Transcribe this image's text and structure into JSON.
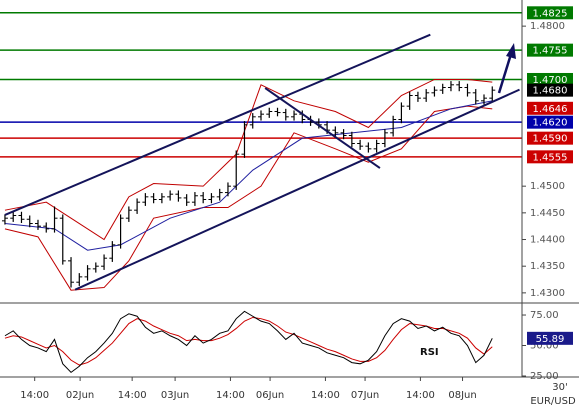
{
  "chart_data": [
    {
      "type": "ohlc",
      "symbol": "EUR/USD",
      "timeframe": "30'",
      "xlim": [
        -0.6,
        62.6
      ],
      "ylim": [
        1.4281,
        1.4849
      ],
      "yticks": [
        {
          "value": 1.43,
          "label": "1.4300"
        },
        {
          "value": 1.435,
          "label": "1.4350"
        },
        {
          "value": 1.44,
          "label": "1.4400"
        },
        {
          "value": 1.445,
          "label": "1.4450"
        },
        {
          "value": 1.45,
          "label": "1.4500"
        },
        {
          "value": 1.48,
          "label": "1.4800"
        }
      ],
      "color": "#000000",
      "open": [
        1.4435,
        1.444,
        1.4445,
        1.4438,
        1.443,
        1.4425,
        1.442,
        1.444,
        1.436,
        1.432,
        1.433,
        1.4345,
        1.435,
        1.4365,
        1.439,
        1.444,
        1.4455,
        1.447,
        1.448,
        1.4475,
        1.448,
        1.4485,
        1.4478,
        1.447,
        1.4482,
        1.4475,
        1.448,
        1.4488,
        1.45,
        1.456,
        1.4615,
        1.463,
        1.4635,
        1.464,
        1.4638,
        1.463,
        1.4635,
        1.4625,
        1.462,
        1.4615,
        1.4605,
        1.46,
        1.4595,
        1.458,
        1.4575,
        1.457,
        1.458,
        1.46,
        1.4625,
        1.465,
        1.467,
        1.4665,
        1.4675,
        1.468,
        1.4685,
        1.469,
        1.4685,
        1.4675,
        1.466,
        1.4665
      ],
      "high": [
        1.4447,
        1.4452,
        1.4452,
        1.4445,
        1.4437,
        1.4432,
        1.4462,
        1.4447,
        1.4367,
        1.4337,
        1.4352,
        1.4357,
        1.4372,
        1.4397,
        1.4447,
        1.4462,
        1.4477,
        1.4487,
        1.4487,
        1.4487,
        1.4492,
        1.4492,
        1.4485,
        1.4489,
        1.4489,
        1.4487,
        1.4495,
        1.4507,
        1.4567,
        1.4622,
        1.4637,
        1.4642,
        1.4647,
        1.4647,
        1.4645,
        1.4642,
        1.4642,
        1.4632,
        1.4627,
        1.4622,
        1.4612,
        1.4607,
        1.4602,
        1.4587,
        1.4582,
        1.4587,
        1.4607,
        1.4632,
        1.4657,
        1.4677,
        1.4677,
        1.4682,
        1.4687,
        1.4692,
        1.4697,
        1.4697,
        1.4692,
        1.4682,
        1.4672,
        1.4687
      ],
      "low": [
        1.4428,
        1.4433,
        1.4431,
        1.4423,
        1.4418,
        1.4413,
        1.4413,
        1.4353,
        1.431,
        1.4313,
        1.4323,
        1.4338,
        1.4343,
        1.4358,
        1.4383,
        1.4433,
        1.4448,
        1.4463,
        1.4468,
        1.4468,
        1.4473,
        1.4471,
        1.4463,
        1.4463,
        1.4468,
        1.4468,
        1.4473,
        1.4481,
        1.4493,
        1.4553,
        1.4608,
        1.4623,
        1.4628,
        1.4631,
        1.4623,
        1.4623,
        1.4618,
        1.4613,
        1.4608,
        1.4598,
        1.4593,
        1.4588,
        1.4573,
        1.4568,
        1.4563,
        1.4563,
        1.4573,
        1.4593,
        1.4618,
        1.4643,
        1.4658,
        1.4658,
        1.4668,
        1.4673,
        1.4678,
        1.4678,
        1.4668,
        1.4653,
        1.4653,
        1.4658
      ],
      "close": [
        1.444,
        1.4445,
        1.4438,
        1.443,
        1.4425,
        1.442,
        1.444,
        1.436,
        1.432,
        1.433,
        1.4345,
        1.435,
        1.4365,
        1.439,
        1.444,
        1.4455,
        1.447,
        1.448,
        1.4475,
        1.448,
        1.4485,
        1.4478,
        1.447,
        1.4482,
        1.4475,
        1.448,
        1.4488,
        1.45,
        1.456,
        1.4615,
        1.463,
        1.4635,
        1.464,
        1.4638,
        1.463,
        1.4635,
        1.4625,
        1.462,
        1.4615,
        1.4605,
        1.46,
        1.4595,
        1.458,
        1.4575,
        1.457,
        1.458,
        1.46,
        1.4625,
        1.465,
        1.467,
        1.4665,
        1.4675,
        1.468,
        1.4685,
        1.469,
        1.4685,
        1.4675,
        1.466,
        1.4665,
        1.468
      ],
      "overlays": [
        {
          "color": "#c00000",
          "x": [
            0,
            5,
            8,
            12,
            15,
            18,
            24,
            28,
            31,
            35,
            40,
            44,
            48,
            52,
            56,
            59
          ],
          "values": [
            1.4455,
            1.447,
            1.444,
            1.44,
            1.448,
            1.4505,
            1.45,
            1.456,
            1.469,
            1.466,
            1.464,
            1.461,
            1.467,
            1.47,
            1.47,
            1.4695
          ]
        },
        {
          "color": "#c00000",
          "x": [
            0,
            4,
            8,
            12,
            15,
            18,
            24,
            27,
            31,
            35,
            40,
            44,
            48,
            52,
            56,
            59
          ],
          "values": [
            1.442,
            1.4405,
            1.4305,
            1.431,
            1.436,
            1.444,
            1.446,
            1.446,
            1.45,
            1.46,
            1.457,
            1.4545,
            1.457,
            1.464,
            1.465,
            1.4645
          ]
        },
        {
          "color": "#2020a0",
          "x": [
            0,
            6,
            10,
            14,
            20,
            26,
            30,
            36,
            42,
            48,
            54,
            59
          ],
          "values": [
            1.443,
            1.442,
            1.438,
            1.439,
            1.444,
            1.447,
            1.453,
            1.459,
            1.46,
            1.461,
            1.4645,
            1.466
          ]
        }
      ],
      "trendlines": [
        {
          "color": "#14145a",
          "x": [
            0,
            51.5
          ],
          "y": [
            1.4446,
            1.4784
          ]
        },
        {
          "color": "#14145a",
          "x": [
            8.5,
            62.3
          ],
          "y": [
            1.4306,
            1.4681
          ]
        },
        {
          "color": "#14145a",
          "x": [
            31.5,
            45.4
          ],
          "y": [
            1.4684,
            1.4534
          ]
        }
      ],
      "levels": [
        {
          "value": 1.4825,
          "label": "1.4825",
          "color": "#007a00",
          "line": true
        },
        {
          "value": 1.4755,
          "label": "1.4755",
          "color": "#007a00",
          "line": true
        },
        {
          "value": 1.47,
          "label": "1.4700",
          "color": "#007a00",
          "line": true
        },
        {
          "value": 1.468,
          "label": "1.4680",
          "color": "#000000",
          "line": false
        },
        {
          "value": 1.4646,
          "label": "1.4646",
          "color": "#cc0000",
          "line": false
        },
        {
          "value": 1.462,
          "label": "1.4620",
          "color": "#0000aa",
          "line": true
        },
        {
          "value": 1.459,
          "label": "1.4590",
          "color": "#cc0000",
          "line": true
        },
        {
          "value": 1.4555,
          "label": "1.4555",
          "color": "#cc0000",
          "line": true
        }
      ]
    },
    {
      "type": "line",
      "title": "RSI",
      "xlim": [
        -0.6,
        62.6
      ],
      "ylim": [
        25,
        82.4
      ],
      "yticks": [
        {
          "value": 75,
          "label": "75.00"
        },
        {
          "value": 50,
          "label": "50.00"
        },
        {
          "value": 25,
          "label": "25.00"
        }
      ],
      "xticks": [
        {
          "value": 3.6,
          "label": "14:00"
        },
        {
          "value": 9.1,
          "label": "02Jun"
        },
        {
          "value": 15.4,
          "label": "14:00"
        },
        {
          "value": 20.6,
          "label": "03Jun"
        },
        {
          "value": 27.3,
          "label": "14:00"
        },
        {
          "value": 32.1,
          "label": "06Jun"
        },
        {
          "value": 38.8,
          "label": "14:00"
        },
        {
          "value": 43.6,
          "label": "07Jun"
        },
        {
          "value": 50.3,
          "label": "14:00"
        },
        {
          "value": 55.4,
          "label": "08Jun"
        }
      ],
      "series": [
        {
          "color": "#000000",
          "values": [
            58,
            62,
            55,
            50,
            48,
            45,
            55,
            35,
            28,
            33,
            40,
            45,
            52,
            60,
            72,
            76,
            74,
            65,
            60,
            62,
            58,
            55,
            50,
            58,
            52,
            55,
            60,
            62,
            72,
            78,
            74,
            70,
            68,
            62,
            55,
            60,
            52,
            50,
            48,
            44,
            42,
            40,
            36,
            35,
            38,
            45,
            58,
            68,
            72,
            70,
            64,
            66,
            62,
            65,
            60,
            58,
            50,
            36,
            42,
            55.89
          ]
        },
        {
          "color": "#cc0000",
          "values": [
            56,
            58,
            57,
            54,
            51,
            48,
            50,
            45,
            38,
            34,
            36,
            40,
            46,
            52,
            60,
            68,
            72,
            70,
            66,
            63,
            60,
            58,
            54,
            55,
            54,
            54,
            56,
            59,
            64,
            70,
            73,
            72,
            70,
            66,
            61,
            59,
            56,
            53,
            50,
            47,
            45,
            42,
            39,
            37,
            37,
            40,
            46,
            55,
            63,
            68,
            67,
            66,
            64,
            64,
            62,
            60,
            56,
            48,
            43,
            49
          ]
        }
      ],
      "current": 55.89,
      "current_color": "#1a1a8a"
    }
  ]
}
